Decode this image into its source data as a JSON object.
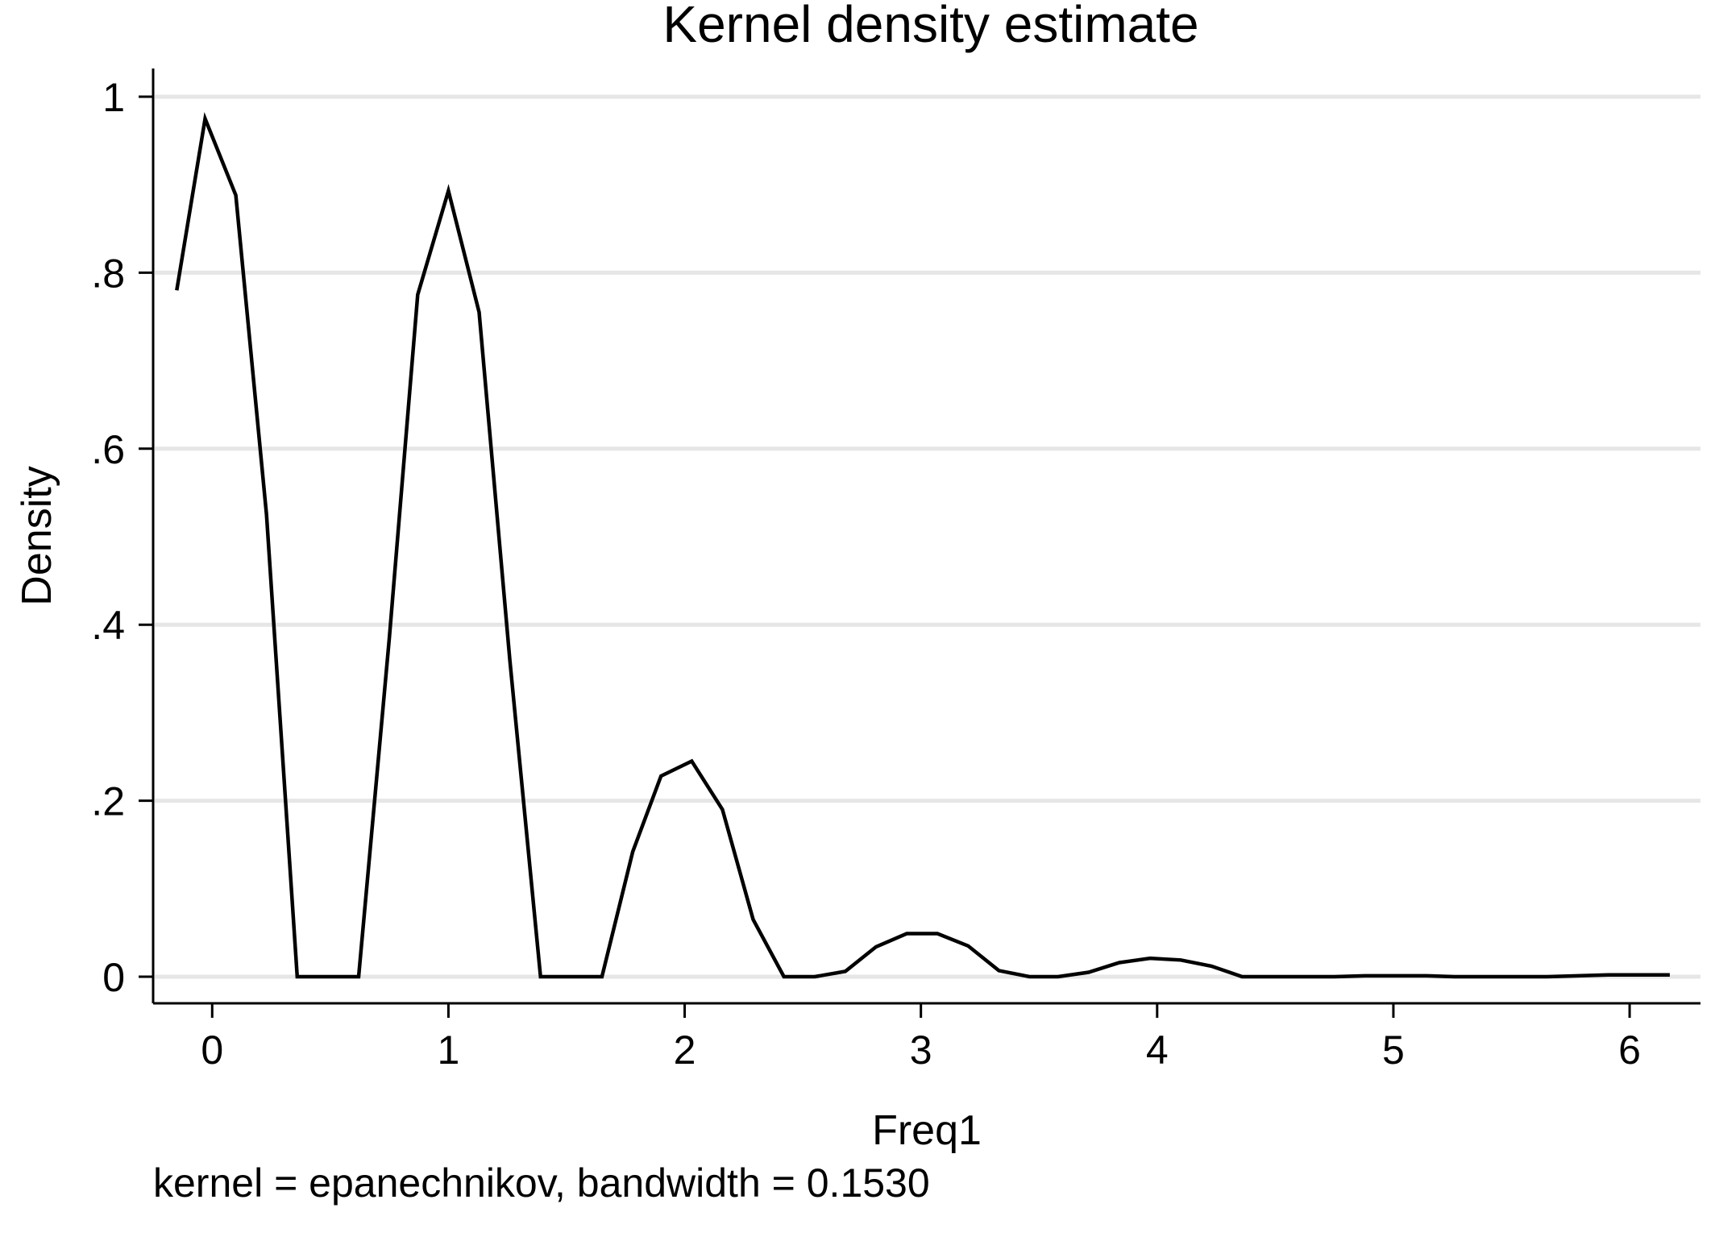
{
  "chart_data": {
    "type": "line",
    "title": "Kernel density estimate",
    "xlabel": "Freq1",
    "ylabel": "Density",
    "note": "kernel = epanechnikov, bandwidth = 0.1530",
    "xlim": [
      -0.25,
      6.3
    ],
    "ylim": [
      0,
      1.03
    ],
    "xticks": [
      0,
      1,
      2,
      3,
      4,
      5,
      6
    ],
    "xtick_labels": [
      "0",
      "1",
      "2",
      "3",
      "4",
      "5",
      "6"
    ],
    "yticks": [
      0,
      0.2,
      0.4,
      0.6,
      0.8,
      1
    ],
    "ytick_labels": [
      "0",
      ".2",
      ".4",
      ".6",
      ".8",
      "1"
    ],
    "grid": "horizontal",
    "series": [
      {
        "color": "#000000",
        "x": [
          -0.15,
          -0.03,
          0.1,
          0.23,
          0.36,
          0.49,
          0.62,
          0.75,
          0.87,
          1.0,
          1.13,
          1.26,
          1.39,
          1.52,
          1.65,
          1.78,
          1.9,
          2.03,
          2.16,
          2.29,
          2.42,
          2.55,
          2.68,
          2.81,
          2.94,
          3.07,
          3.2,
          3.33,
          3.46,
          3.58,
          3.71,
          3.84,
          3.97,
          4.1,
          4.23,
          4.36,
          4.49,
          4.62,
          4.75,
          4.88,
          5.01,
          5.14,
          5.26,
          5.39,
          5.52,
          5.65,
          5.78,
          5.91,
          6.04,
          6.17
        ],
        "y": [
          0.78,
          0.975,
          0.888,
          0.525,
          0.0,
          0.0,
          0.0,
          0.385,
          0.775,
          0.893,
          0.755,
          0.36,
          0.0,
          0.0,
          0.0,
          0.142,
          0.228,
          0.245,
          0.19,
          0.065,
          0.0,
          0.0,
          0.006,
          0.034,
          0.049,
          0.049,
          0.035,
          0.007,
          0.0,
          0.0,
          0.005,
          0.016,
          0.021,
          0.019,
          0.012,
          0.0,
          0.0,
          0.0,
          0.0,
          0.001,
          0.001,
          0.001,
          0.0,
          0.0,
          0.0,
          0.0,
          0.001,
          0.002,
          0.002,
          0.002
        ]
      }
    ]
  }
}
